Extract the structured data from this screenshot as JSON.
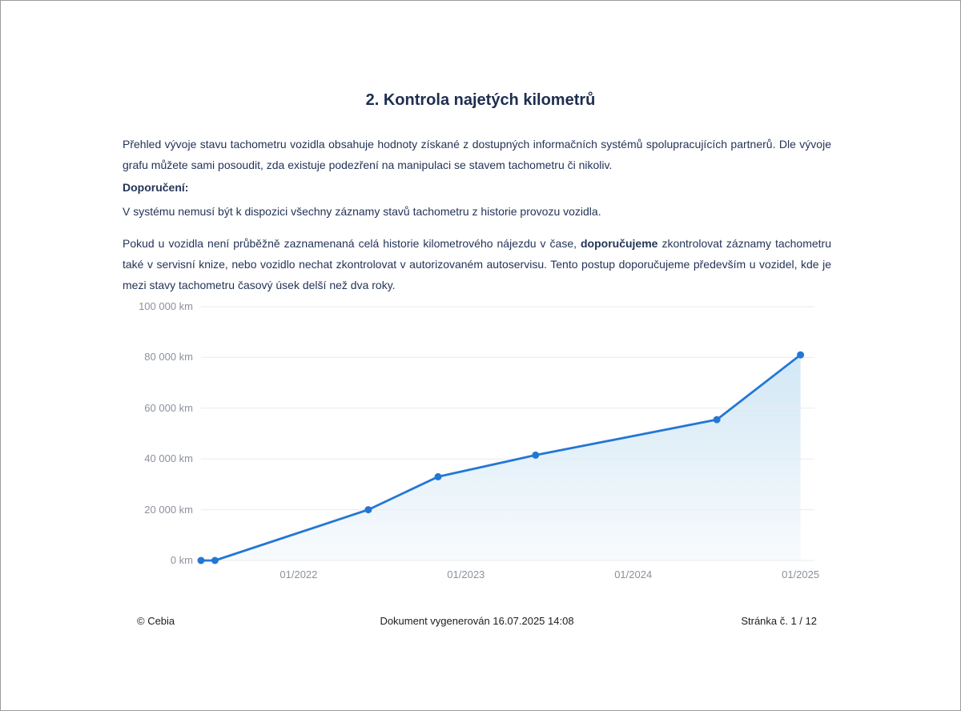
{
  "page": {
    "title": "2. Kontrola najetých kilometrů",
    "paragraph1": "Přehled vývoje stavu tachometru vozidla obsahuje hodnoty získané z dostupných informačních systémů spolupracujících partnerů. Dle vývoje grafu můžete sami posoudit, zda existuje podezření na manipulaci se stavem tachometru či nikoliv.",
    "recommendation_label": "Doporučení:",
    "paragraph2": "V systému nemusí být k dispozici všechny záznamy stavů tachometru z historie provozu vozidla.",
    "paragraph3_before": "Pokud u vozidla není průběžně zaznamenaná celá historie kilometrového nájezdu v čase, ",
    "paragraph3_bold": "doporučujeme",
    "paragraph3_after": " zkontrolovat záznamy tachometru také v servisní knize, nebo vozidlo nechat zkontrolovat v autorizovaném autoservisu. Tento postup doporučujeme především u vozidel, kde je mezi stavy tachometru časový úsek delší než dva roky."
  },
  "chart_data": {
    "type": "area",
    "title": "",
    "xlabel": "",
    "ylabel": "km",
    "ylim": [
      0,
      100000
    ],
    "x_range": [
      "06/2021",
      "02/2025"
    ],
    "x_ticks": [
      "01/2022",
      "01/2023",
      "01/2024",
      "01/2025"
    ],
    "y_ticks": [
      "100 000 km",
      "80 000 km",
      "60 000 km",
      "40 000 km",
      "20 000 km",
      "0 km"
    ],
    "y_tick_values": [
      100000,
      80000,
      60000,
      40000,
      20000,
      0
    ],
    "grid": "horizontal",
    "legend": "none",
    "points": [
      {
        "date": "06/2021",
        "km": 0
      },
      {
        "date": "07/2021",
        "km": 0
      },
      {
        "date": "06/2022",
        "km": 20000
      },
      {
        "date": "11/2022",
        "km": 33000
      },
      {
        "date": "06/2023",
        "km": 41500
      },
      {
        "date": "07/2024",
        "km": 55500
      },
      {
        "date": "01/2025",
        "km": 81000
      }
    ],
    "colors": {
      "line": "#2377d4",
      "point": "#2377d4",
      "fill_top": "#d2e7f5",
      "fill_bottom": "#f8fbfd",
      "grid": "#e9ebee",
      "tick_label": "#8b919c"
    }
  },
  "footer": {
    "copyright": "© Cebia",
    "generated": "Dokument vygenerován 16.07.2025 14:08",
    "page_number": "Stránka č. 1 / 12"
  }
}
